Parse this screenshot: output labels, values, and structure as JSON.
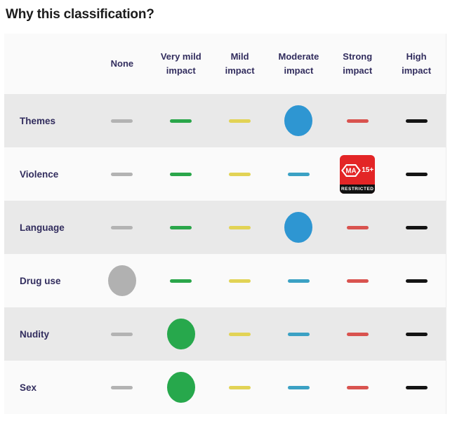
{
  "title": "Why this classification?",
  "table": {
    "columns": [
      {
        "label": "None",
        "dash_color": "#b3b3b3",
        "circle_color": "#b1b1b1"
      },
      {
        "label": "Very mild impact",
        "dash_color": "#2aa64a",
        "circle_color": "#27a84c"
      },
      {
        "label": "Mild impact",
        "dash_color": "#e2d355",
        "circle_color": "#e2d355"
      },
      {
        "label": "Moderate impact",
        "dash_color": "#3ba1c4",
        "circle_color": "#2e96d2"
      },
      {
        "label": "Strong impact",
        "dash_color": "#d9534f",
        "circle_color": "#d9534f"
      },
      {
        "label": "High impact",
        "dash_color": "#141414",
        "circle_color": "#141414"
      }
    ],
    "rows": [
      {
        "label": "Themes",
        "markers": [
          "dash",
          "dash",
          "dash",
          "circle",
          "dash",
          "dash"
        ],
        "selected_level": "Moderate impact"
      },
      {
        "label": "Violence",
        "markers": [
          "dash",
          "dash",
          "dash",
          "dash",
          "badge",
          "dash"
        ],
        "selected_level": "Strong impact"
      },
      {
        "label": "Language",
        "markers": [
          "dash",
          "dash",
          "dash",
          "circle",
          "dash",
          "dash"
        ],
        "selected_level": "Moderate impact"
      },
      {
        "label": "Drug use",
        "markers": [
          "circle",
          "dash",
          "dash",
          "dash",
          "dash",
          "dash"
        ],
        "selected_level": "None"
      },
      {
        "label": "Nudity",
        "markers": [
          "dash",
          "circle",
          "dash",
          "dash",
          "dash",
          "dash"
        ],
        "selected_level": "Very mild impact"
      },
      {
        "label": "Sex",
        "markers": [
          "dash",
          "circle",
          "dash",
          "dash",
          "dash",
          "dash"
        ],
        "selected_level": "Very mild impact"
      }
    ]
  },
  "badge": {
    "rating": "MA",
    "age": "15+",
    "strip_label": "RESTRICTED",
    "background": "#e32526",
    "strip_background": "#111111",
    "text_color": "#ffffff"
  },
  "colors": {
    "title_text": "#1b1b1b",
    "header_text": "#322d5e",
    "row_label_text": "#322d5e",
    "stripe_row_bg": "#e9e9e9",
    "plain_row_bg": "#fafafa",
    "page_bg": "#ffffff"
  }
}
